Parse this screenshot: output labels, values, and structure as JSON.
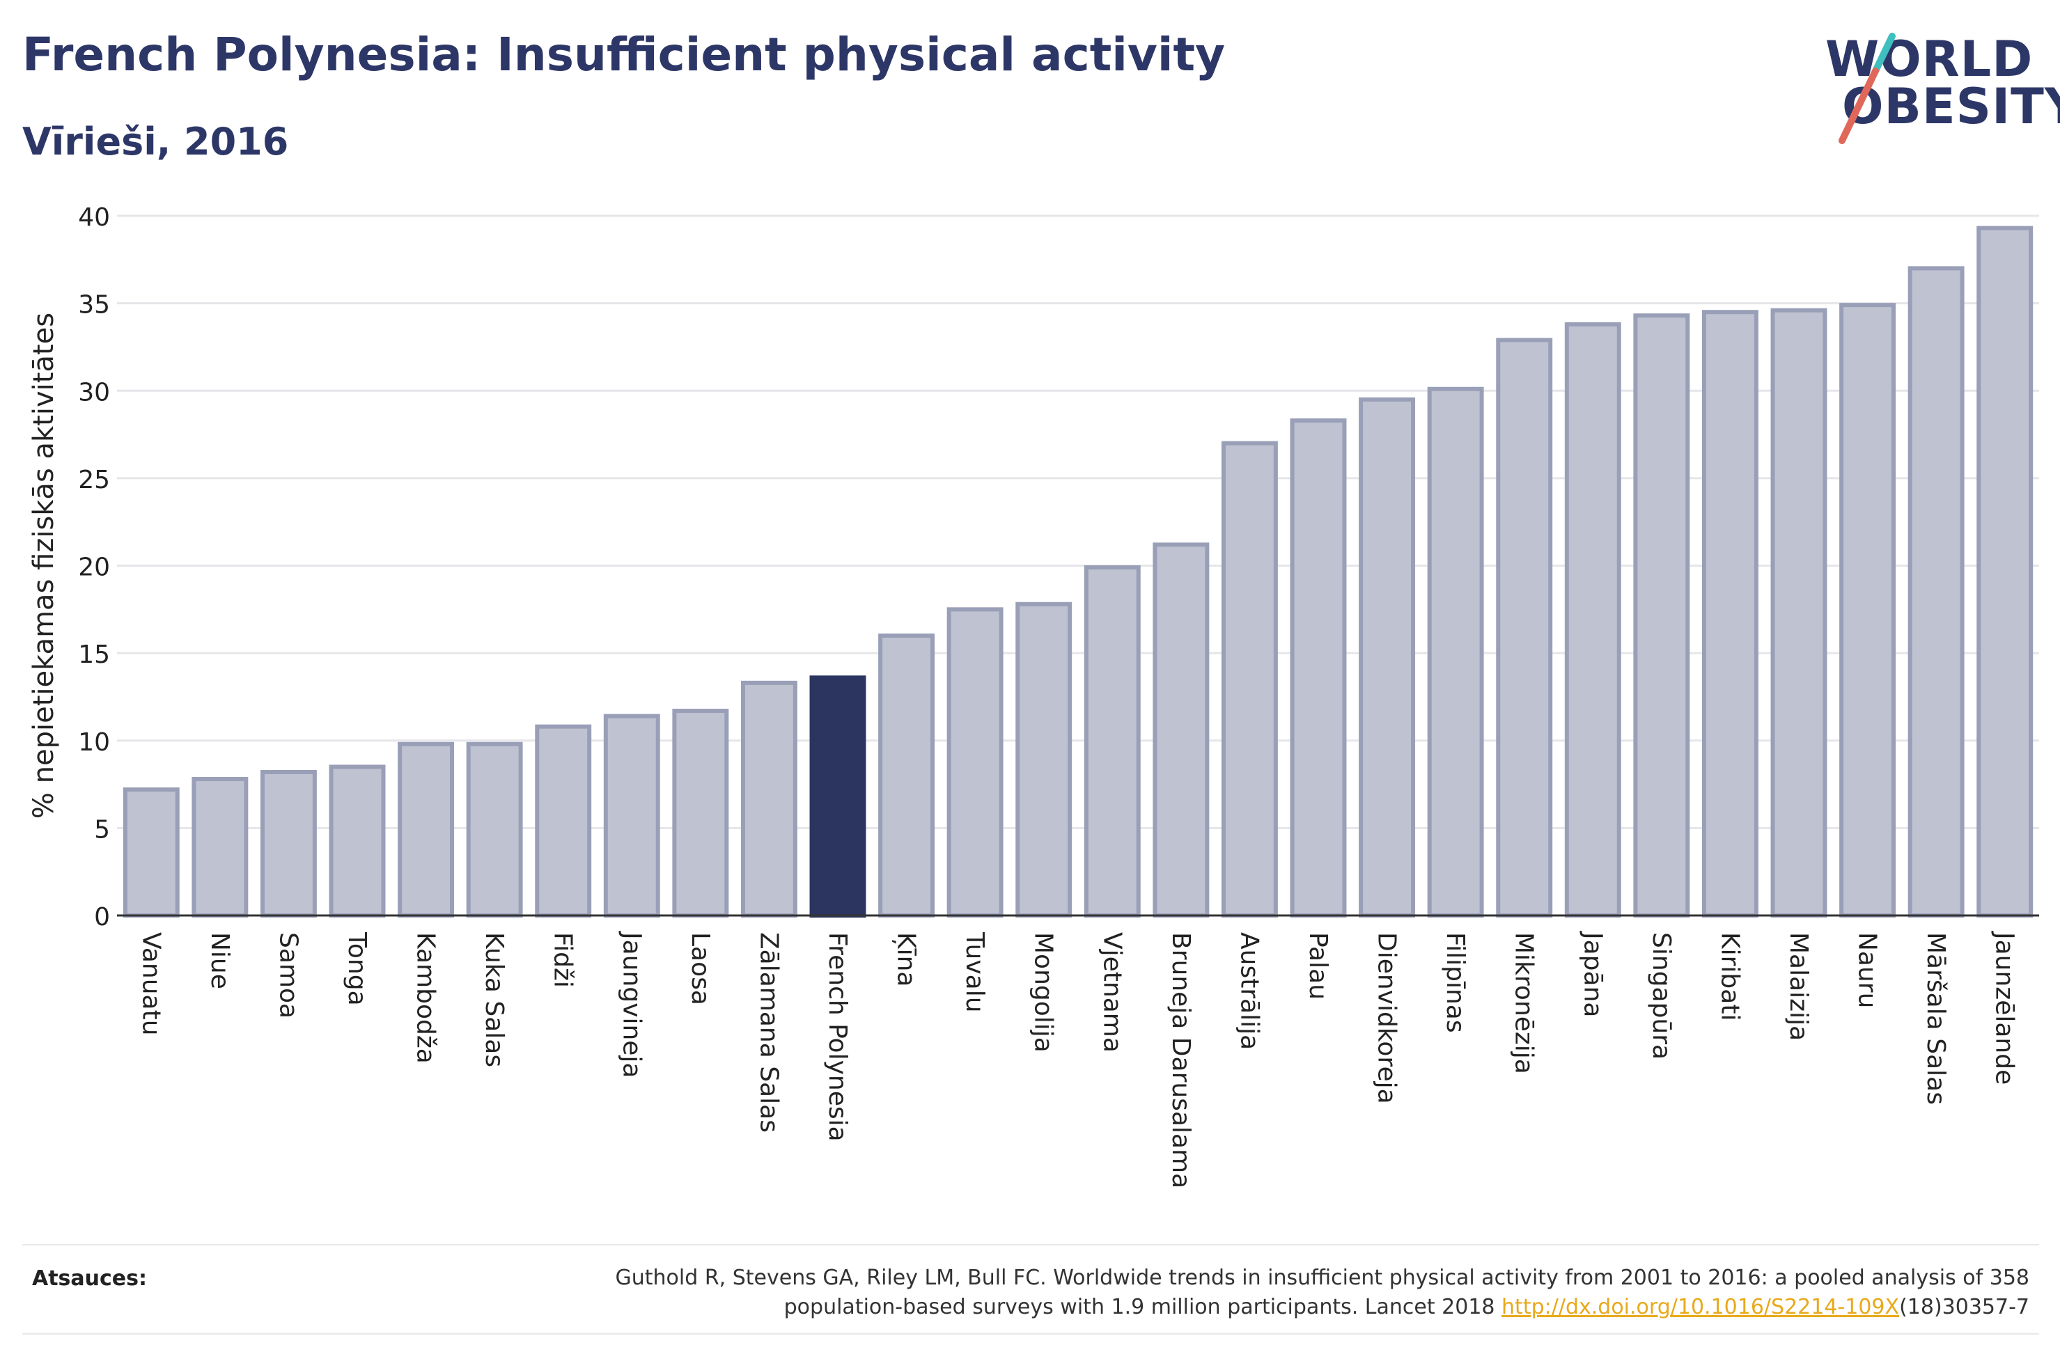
{
  "header": {
    "title": "French Polynesia: Insufficient physical activity",
    "subtitle": "Vīrieši, 2016"
  },
  "logo": {
    "line1": "WORLD",
    "line2": "OBESITY"
  },
  "colors": {
    "bar": "#bfc2d0",
    "bar_border": "#9a9fb8",
    "highlight": "#2b3560",
    "text": "#2d3767",
    "grid": "#e6e6ea"
  },
  "chart_data": {
    "type": "bar",
    "title": "French Polynesia: Insufficient physical activity",
    "subtitle": "Vīrieši, 2016",
    "ylabel": "% nepietiekamas fiziskās aktivitātes",
    "xlabel": "",
    "ylim": [
      0,
      40
    ],
    "yticks": [
      0,
      5,
      10,
      15,
      20,
      25,
      30,
      35,
      40
    ],
    "grid": true,
    "highlight": "French Polynesia",
    "categories": [
      "Vanuatu",
      "Niue",
      "Samoa",
      "Tonga",
      "Kambodža",
      "Kuka Salas",
      "Fidži",
      "Jaungvineja",
      "Laosa",
      "Zālamana Salas",
      "French Polynesia",
      "Ķīna",
      "Tuvalu",
      "Mongolija",
      "Vjetnama",
      "Bruneja Darusalama",
      "Austrālija",
      "Palau",
      "Dienvidkoreja",
      "Filipīnas",
      "Mikronēzija",
      "Japāna",
      "Singapūra",
      "Kiribati",
      "Malaizija",
      "Nauru",
      "Māršala Salas",
      "Jaunzēlande"
    ],
    "values": [
      7.2,
      7.8,
      8.2,
      8.5,
      9.8,
      9.8,
      10.8,
      11.4,
      11.7,
      13.3,
      13.6,
      16.0,
      17.5,
      17.8,
      19.9,
      21.2,
      27.0,
      28.3,
      29.5,
      30.1,
      32.9,
      33.8,
      34.3,
      34.5,
      34.6,
      34.9,
      37.0,
      39.3
    ]
  },
  "footer": {
    "label": "Atsauces:",
    "ref_line1": "Guthold R, Stevens GA, Riley LM, Bull FC. Worldwide trends in insufficient physical activity from 2001 to 2016: a pooled analysis of 358",
    "ref_line2_prefix": "population-based surveys with 1.9 million participants. Lancet 2018 ",
    "ref_link": "http://dx.doi.org/10.1016/S2214-109X",
    "ref_line2_suffix": "(18)30357-7"
  }
}
